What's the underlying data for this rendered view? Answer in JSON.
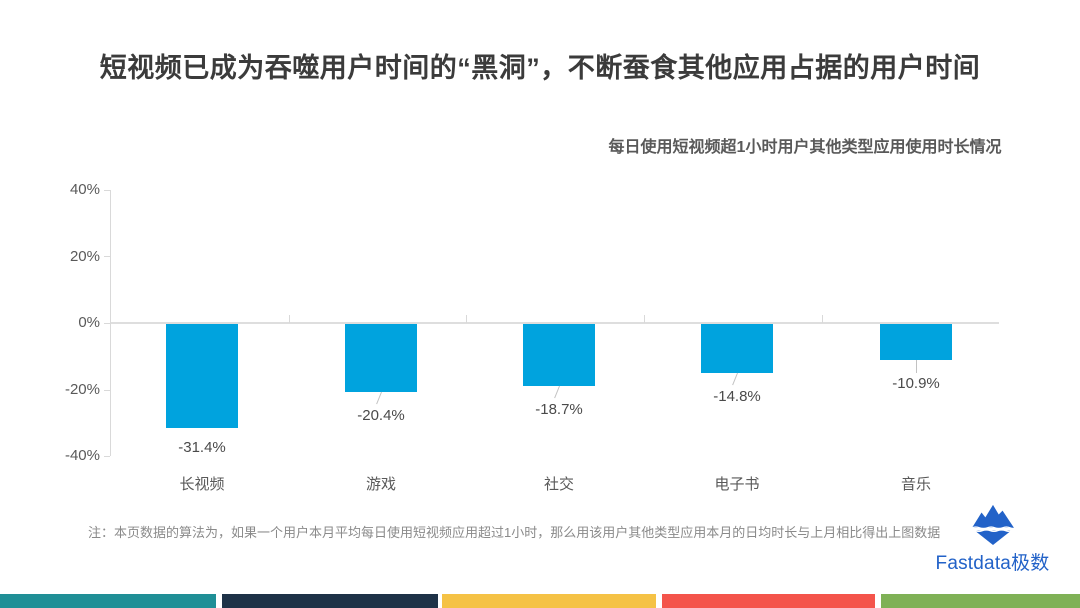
{
  "title": "短视频已成为吞噬用户时间的“黑洞”，不断蚕食其他应用占据的用户时间",
  "chart_data": {
    "type": "bar",
    "title": "每日使用短视频超1小时用户其他类型应用使用时长情况",
    "categories": [
      "长视频",
      "游戏",
      "社交",
      "电子书",
      "音乐"
    ],
    "values": [
      -31.4,
      -20.4,
      -18.7,
      -14.8,
      -10.9
    ],
    "data_labels": [
      "-31.4%",
      "-20.4%",
      "-18.7%",
      "-14.8%",
      "-10.9%"
    ],
    "y_ticks": [
      "40%",
      "20%",
      "0%",
      "-20%",
      "-40%"
    ],
    "ylim": [
      -40,
      40
    ],
    "legend": "none",
    "grid": "zero baseline only",
    "bar_color": "#00A3DE"
  },
  "note": "注：本页数据的算法为，如果一个用户本月平均每日使用短视频应用超过1小时，那么用该用户其他类型应用本月的日均时长与上月相比得出上图数据",
  "logo": {
    "text": "Fastdata极数",
    "color": "#2262C8",
    "icon": "iceberg-icon"
  },
  "footer_strip_colors": [
    "#1F8F96",
    "#1E3247",
    "#F5C245",
    "#F4544B",
    "#7FB156"
  ]
}
